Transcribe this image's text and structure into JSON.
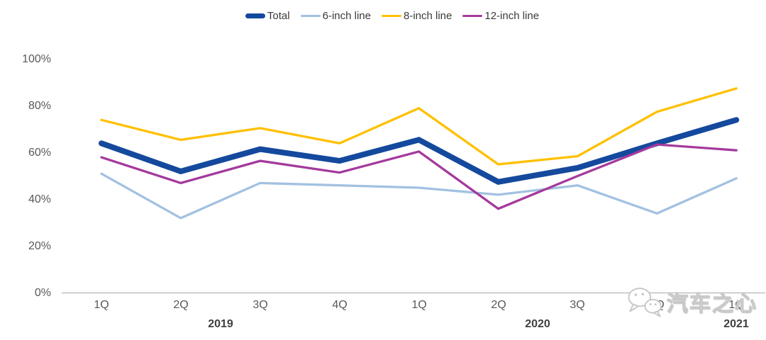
{
  "chart_data": {
    "type": "line",
    "title": "",
    "xlabel": "",
    "ylabel": "",
    "unit": "%",
    "ylim": [
      0,
      100
    ],
    "y_ticks": [
      "0%",
      "20%",
      "40%",
      "60%",
      "80%",
      "100%"
    ],
    "grid": "off",
    "legend_position": "top-center",
    "categories": [
      "1Q",
      "2Q",
      "3Q",
      "4Q",
      "1Q",
      "2Q",
      "3Q",
      "4Q",
      "1Q"
    ],
    "year_groups": [
      {
        "label": "2019",
        "span": [
          0,
          3
        ]
      },
      {
        "label": "2020",
        "span": [
          4,
          7
        ]
      },
      {
        "label": "2021",
        "span": [
          8,
          8
        ]
      }
    ],
    "series": [
      {
        "name": "Total",
        "color": "#14499d",
        "thickness": 8,
        "values": [
          64,
          52,
          61.5,
          56.5,
          65.5,
          47.5,
          53.5,
          64,
          74
        ]
      },
      {
        "name": "6-inch line",
        "color": "#a3c1e1",
        "thickness": 3.3,
        "values": [
          51,
          32,
          47,
          46,
          45,
          42,
          46,
          34,
          49
        ]
      },
      {
        "name": "8-inch line",
        "color": "#ffc000",
        "thickness": 3.3,
        "values": [
          74,
          65.5,
          70.5,
          64,
          79,
          55,
          58.5,
          77.5,
          87.5
        ]
      },
      {
        "name": "12-inch line",
        "color": "#a43a9d",
        "thickness": 3.3,
        "values": [
          58,
          47,
          56.5,
          51.5,
          60.5,
          36,
          50,
          63.5,
          61
        ]
      }
    ],
    "colors": {
      "axis": "#c0c0c0",
      "tick_text": "#595959",
      "year_text": "#3f3f3f",
      "legend_text": "#3a3a3a",
      "watermark": "#c9c9c9"
    }
  },
  "watermark": {
    "text": "汽车之心",
    "icon": "wechat-icon"
  }
}
